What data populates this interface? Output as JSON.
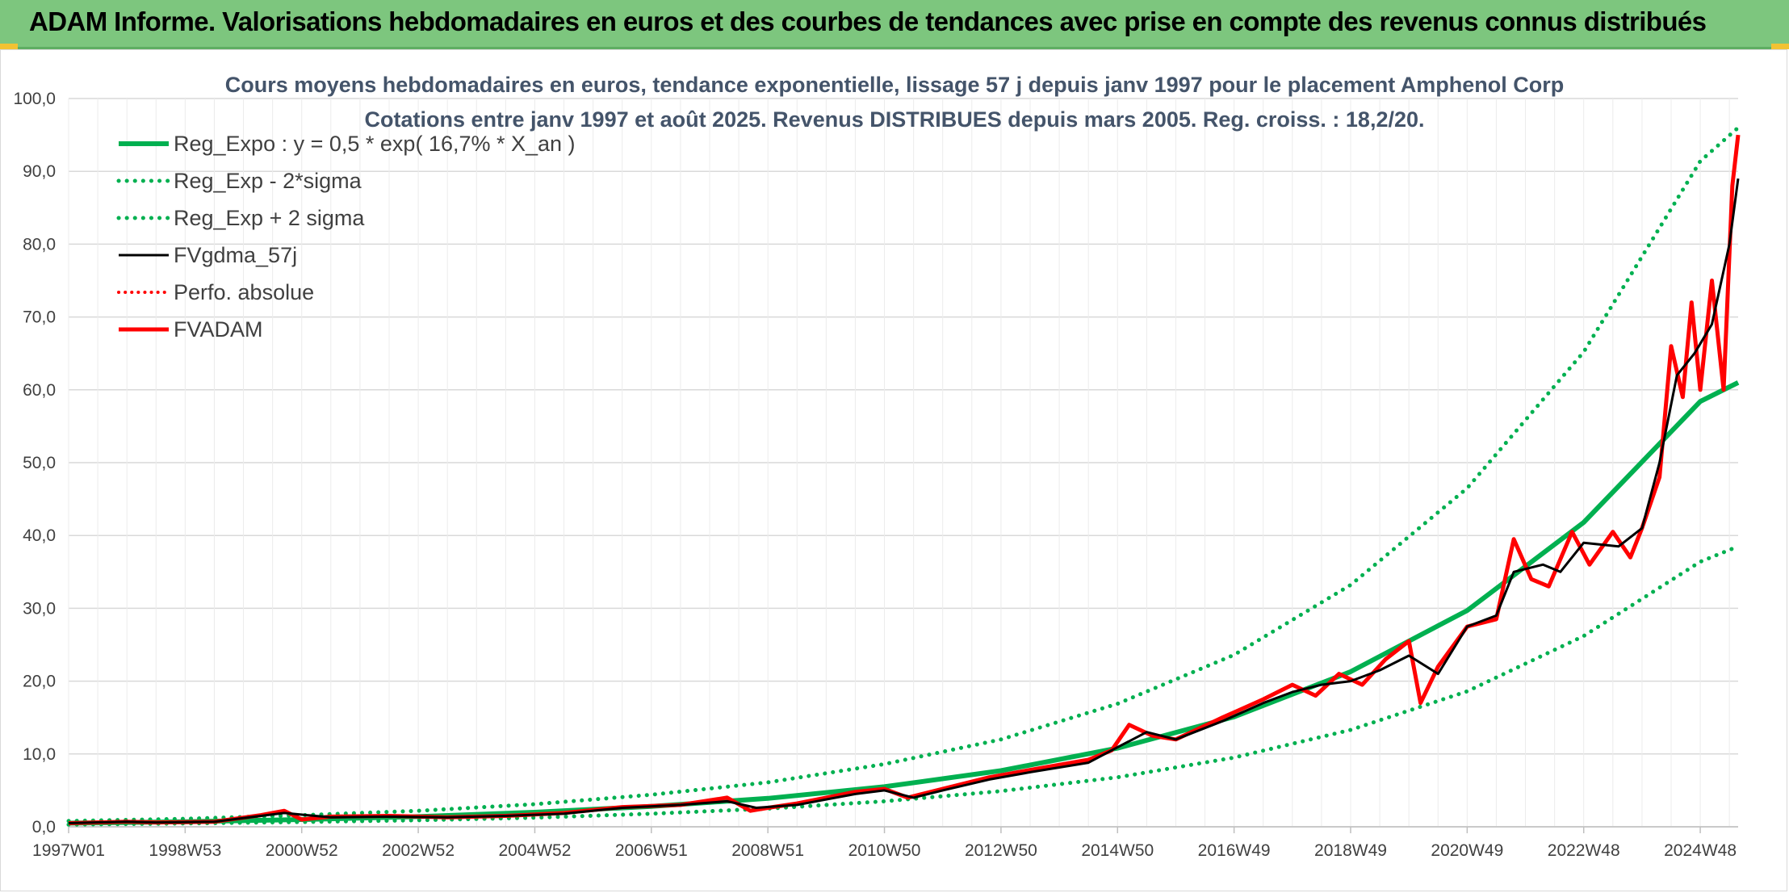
{
  "header": {
    "title": "ADAM Informe. Valorisations hebdomadaires en euros et des courbes de tendances avec prise en compte des revenus connus distribués"
  },
  "chart_data": {
    "type": "line",
    "title": "Cours moyens hebdomadaires en euros, tendance exponentielle, lissage 57 j depuis janv 1997 pour le placement Amphenol Corp",
    "subtitle": "Cotations entre janv 1997 et août 2025. Revenus DISTRIBUES depuis mars 2005. Reg. croiss. : 18,2/20.",
    "xlabel": "",
    "ylabel": "",
    "ylim": [
      0,
      100
    ],
    "yticks": [
      "0,0",
      "10,0",
      "20,0",
      "30,0",
      "40,0",
      "50,0",
      "60,0",
      "70,0",
      "80,0",
      "90,0",
      "100,0"
    ],
    "xlim": [
      1997.0,
      2025.65
    ],
    "xticks": [
      {
        "label": "1997W01",
        "x": 1997.0
      },
      {
        "label": "1998W53",
        "x": 1999.0
      },
      {
        "label": "2000W52",
        "x": 2001.0
      },
      {
        "label": "2002W52",
        "x": 2003.0
      },
      {
        "label": "2004W52",
        "x": 2005.0
      },
      {
        "label": "2006W51",
        "x": 2007.0
      },
      {
        "label": "2008W51",
        "x": 2009.0
      },
      {
        "label": "2010W50",
        "x": 2011.0
      },
      {
        "label": "2012W50",
        "x": 2013.0
      },
      {
        "label": "2014W50",
        "x": 2015.0
      },
      {
        "label": "2016W49",
        "x": 2017.0
      },
      {
        "label": "2018W49",
        "x": 2019.0
      },
      {
        "label": "2020W49",
        "x": 2021.0
      },
      {
        "label": "2022W48",
        "x": 2023.0
      },
      {
        "label": "2024W48",
        "x": 2025.0
      }
    ],
    "grid": true,
    "legend_position": "top-left",
    "colors": {
      "trend": "#00b050",
      "smooth": "#000000",
      "price": "#ff0000"
    },
    "series": [
      {
        "name": "Reg_Expo : y = 0,5 * exp( 16,7% *  X_an )",
        "style": "solid-green",
        "x": [
          1997.0,
          1999.0,
          2001.0,
          2003.0,
          2005.0,
          2007.0,
          2009.0,
          2011.0,
          2013.0,
          2015.0,
          2017.0,
          2019.0,
          2021.0,
          2023.0,
          2025.0,
          2025.65
        ],
        "values": [
          0.5,
          0.7,
          1.0,
          1.4,
          2.0,
          2.8,
          3.9,
          5.5,
          7.7,
          10.8,
          15.1,
          21.3,
          29.7,
          41.8,
          58.4,
          61.0
        ]
      },
      {
        "name": "Reg_Exp - 2*sigma",
        "style": "dotted-green",
        "x": [
          1997.0,
          1999.0,
          2001.0,
          2003.0,
          2005.0,
          2007.0,
          2009.0,
          2011.0,
          2013.0,
          2015.0,
          2017.0,
          2019.0,
          2021.0,
          2023.0,
          2025.0,
          2025.65
        ],
        "values": [
          0.3,
          0.45,
          0.65,
          0.9,
          1.25,
          1.8,
          2.5,
          3.5,
          4.9,
          6.8,
          9.5,
          13.3,
          18.6,
          26.2,
          36.4,
          38.5
        ]
      },
      {
        "name": "Reg_Exp + 2 sigma",
        "style": "dotted-green",
        "x": [
          1997.0,
          1999.0,
          2001.0,
          2003.0,
          2005.0,
          2007.0,
          2009.0,
          2011.0,
          2013.0,
          2015.0,
          2017.0,
          2019.0,
          2021.0,
          2023.0,
          2025.0,
          2025.65
        ],
        "values": [
          0.8,
          1.1,
          1.6,
          2.2,
          3.1,
          4.4,
          6.1,
          8.6,
          12.0,
          16.9,
          23.6,
          33.2,
          46.5,
          65.2,
          91.4,
          96.0
        ]
      },
      {
        "name": "FVgdma_57j",
        "style": "solid-black",
        "x": [
          1997.0,
          1998.0,
          1998.5,
          1999.5,
          2000.3,
          2000.7,
          2001.5,
          2002.5,
          2003.5,
          2004.5,
          2005.5,
          2006.5,
          2007.5,
          2008.3,
          2008.8,
          2009.5,
          2010.5,
          2011.0,
          2011.5,
          2012.0,
          2012.8,
          2013.5,
          2014.5,
          2014.9,
          2015.5,
          2016.0,
          2016.8,
          2017.5,
          2018.0,
          2018.5,
          2019.0,
          2019.5,
          2020.0,
          2020.5,
          2021.0,
          2021.5,
          2021.8,
          2022.3,
          2022.6,
          2023.0,
          2023.6,
          2024.0,
          2024.3,
          2024.6,
          2024.9,
          2025.2,
          2025.5,
          2025.65
        ],
        "values": [
          0.5,
          0.7,
          0.6,
          0.7,
          1.5,
          1.9,
          1.3,
          1.4,
          1.3,
          1.5,
          1.8,
          2.6,
          3.0,
          3.5,
          2.6,
          3.0,
          4.5,
          5.0,
          4.0,
          5.0,
          6.5,
          7.5,
          8.8,
          10.5,
          13.0,
          12.0,
          14.5,
          17.0,
          18.5,
          19.5,
          20.0,
          21.5,
          23.5,
          21.0,
          27.5,
          29.0,
          35.0,
          36.0,
          35.0,
          39.0,
          38.5,
          41.0,
          50.0,
          62.0,
          65.0,
          69.0,
          80.0,
          89.0
        ]
      },
      {
        "name": "Perfo. absolue",
        "style": "dotted-red",
        "x": [],
        "values": []
      },
      {
        "name": "FVADAM",
        "style": "solid-red",
        "x": [
          1997.0,
          1998.0,
          1998.5,
          1999.5,
          2000.3,
          2000.7,
          2001.0,
          2001.5,
          2002.5,
          2003.5,
          2004.5,
          2005.5,
          2006.5,
          2007.5,
          2008.3,
          2008.7,
          2009.0,
          2009.5,
          2010.5,
          2011.0,
          2011.4,
          2012.0,
          2012.8,
          2013.5,
          2014.5,
          2014.9,
          2015.2,
          2015.6,
          2016.0,
          2016.8,
          2017.5,
          2018.0,
          2018.4,
          2018.8,
          2019.2,
          2019.6,
          2020.0,
          2020.2,
          2020.5,
          2021.0,
          2021.5,
          2021.8,
          2022.1,
          2022.4,
          2022.8,
          2023.1,
          2023.5,
          2023.8,
          2024.0,
          2024.3,
          2024.5,
          2024.7,
          2024.85,
          2025.0,
          2025.2,
          2025.4,
          2025.55,
          2025.65
        ],
        "values": [
          0.5,
          0.7,
          0.6,
          0.7,
          1.6,
          2.2,
          1.0,
          1.4,
          1.5,
          1.3,
          1.5,
          1.9,
          2.7,
          3.0,
          4.0,
          2.2,
          2.6,
          3.2,
          4.8,
          5.2,
          4.0,
          5.2,
          6.8,
          7.8,
          9.2,
          10.5,
          14.0,
          12.5,
          12.0,
          15.0,
          17.5,
          19.5,
          18.0,
          21.0,
          19.5,
          23.0,
          25.5,
          17.0,
          22.0,
          27.5,
          28.5,
          39.5,
          34.0,
          33.0,
          40.5,
          36.0,
          40.5,
          37.0,
          41.0,
          48.0,
          66.0,
          59.0,
          72.0,
          60.0,
          75.0,
          60.0,
          88.0,
          95.0
        ]
      }
    ]
  }
}
